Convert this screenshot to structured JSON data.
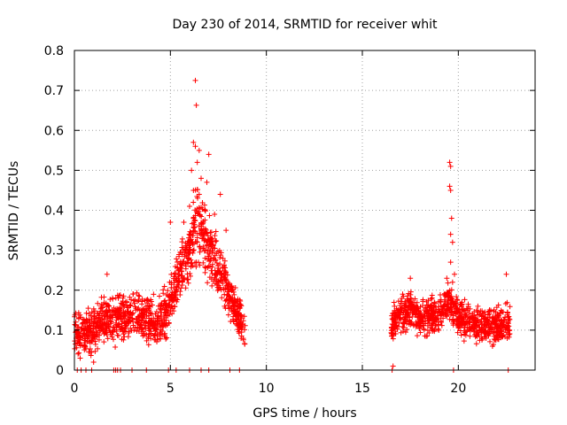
{
  "chart_data": {
    "type": "scatter",
    "title": "Day 230 of 2014, SRMTID for receiver whit",
    "xlabel": "GPS time / hours",
    "ylabel": "SRMTID / TECUs",
    "xlim": [
      0,
      24
    ],
    "ylim": [
      0,
      0.8
    ],
    "x_ticks": [
      0,
      5,
      10,
      15,
      20
    ],
    "x_tick_labels": [
      "0",
      "5",
      "10",
      "15",
      "20"
    ],
    "y_ticks": [
      0,
      0.1,
      0.2,
      0.3,
      0.4,
      0.5,
      0.6,
      0.7,
      0.8
    ],
    "y_tick_labels": [
      "0",
      "0.1",
      "0.2",
      "0.3",
      "0.4",
      "0.5",
      "0.6",
      "0.7",
      "0.8"
    ],
    "grid": true,
    "marker": "plus",
    "color": "#ff0000",
    "series": [
      {
        "name": "SRMTID",
        "segments": [
          {
            "x_start": 0.0,
            "x_end": 8.9,
            "baseline": [
              [
                0,
                0.1
              ],
              [
                0.5,
                0.09
              ],
              [
                1.0,
                0.1
              ],
              [
                1.5,
                0.13
              ],
              [
                2.0,
                0.12
              ],
              [
                2.5,
                0.13
              ],
              [
                3.0,
                0.14
              ],
              [
                3.5,
                0.13
              ],
              [
                4.0,
                0.12
              ],
              [
                4.5,
                0.12
              ],
              [
                5.0,
                0.17
              ],
              [
                5.5,
                0.24
              ],
              [
                6.0,
                0.3
              ],
              [
                6.4,
                0.37
              ],
              [
                6.8,
                0.33
              ],
              [
                7.2,
                0.28
              ],
              [
                7.6,
                0.25
              ],
              [
                8.0,
                0.2
              ],
              [
                8.4,
                0.15
              ],
              [
                8.9,
                0.09
              ]
            ],
            "spread": 0.045
          },
          {
            "x_start": 16.5,
            "x_end": 22.7,
            "baseline": [
              [
                16.5,
                0.11
              ],
              [
                17.0,
                0.14
              ],
              [
                17.5,
                0.15
              ],
              [
                18.0,
                0.13
              ],
              [
                18.5,
                0.13
              ],
              [
                19.0,
                0.14
              ],
              [
                19.5,
                0.17
              ],
              [
                20.0,
                0.14
              ],
              [
                20.5,
                0.12
              ],
              [
                21.0,
                0.11
              ],
              [
                21.5,
                0.12
              ],
              [
                22.0,
                0.11
              ],
              [
                22.7,
                0.12
              ]
            ],
            "spread": 0.035
          }
        ],
        "peaks": [
          [
            6.3,
            0.725
          ],
          [
            6.35,
            0.663
          ],
          [
            6.2,
            0.57
          ],
          [
            6.3,
            0.56
          ],
          [
            6.5,
            0.55
          ],
          [
            7.0,
            0.54
          ],
          [
            6.4,
            0.52
          ],
          [
            6.1,
            0.5
          ],
          [
            6.6,
            0.48
          ],
          [
            6.9,
            0.47
          ],
          [
            6.2,
            0.45
          ],
          [
            6.5,
            0.44
          ],
          [
            7.6,
            0.44
          ],
          [
            6.0,
            0.41
          ],
          [
            6.8,
            0.4
          ],
          [
            7.3,
            0.39
          ],
          [
            5.7,
            0.37
          ],
          [
            5.0,
            0.37
          ],
          [
            7.9,
            0.35
          ],
          [
            6.7,
            0.33
          ],
          [
            19.55,
            0.52
          ],
          [
            19.6,
            0.51
          ],
          [
            19.55,
            0.46
          ],
          [
            19.6,
            0.45
          ],
          [
            19.65,
            0.38
          ],
          [
            19.6,
            0.34
          ],
          [
            19.7,
            0.32
          ],
          [
            19.6,
            0.27
          ],
          [
            19.8,
            0.24
          ],
          [
            19.4,
            0.23
          ],
          [
            19.7,
            0.22
          ],
          [
            22.5,
            0.24
          ],
          [
            17.5,
            0.23
          ],
          [
            1.7,
            0.24
          ]
        ],
        "zeros": [
          0.15,
          0.35,
          0.6,
          0.9,
          2.05,
          2.15,
          2.25,
          2.4,
          3.0,
          3.75,
          4.9,
          5.3,
          6.0,
          6.6,
          7.0,
          8.1,
          8.6,
          16.55,
          19.75,
          22.6
        ],
        "dips": [
          [
            16.6,
            0.01
          ],
          [
            0.3,
            0.03
          ],
          [
            1.0,
            0.02
          ]
        ]
      }
    ]
  }
}
